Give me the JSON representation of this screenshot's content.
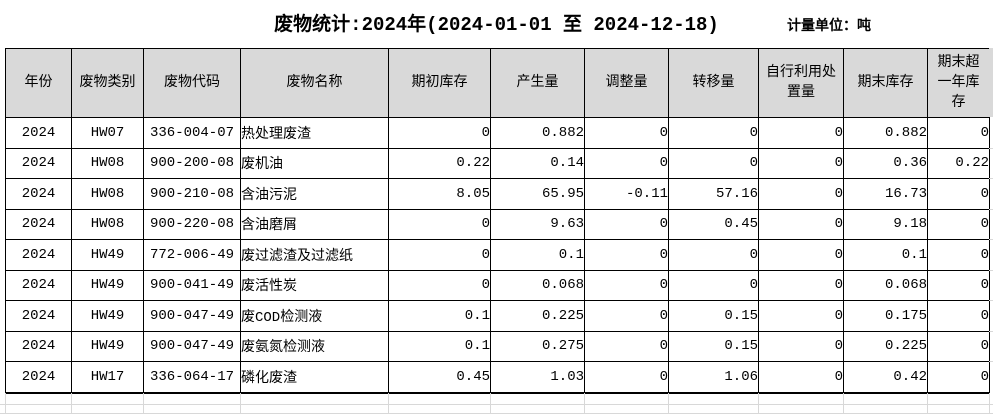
{
  "page": {
    "title": "废物统计:2024年(2024-01-01 至 2024-12-18)",
    "unit_label": "计量单位：吨"
  },
  "table": {
    "columns": [
      "年份",
      "废物类别",
      "废物代码",
      "废物名称",
      "期初库存",
      "产生量",
      "调整量",
      "转移量",
      "自行利用处置量",
      "期末库存",
      "期末超一年库存"
    ],
    "rows": [
      {
        "cells": [
          "2024",
          "HW07",
          "336-004-07",
          "热处理废渣",
          "0",
          "0.882",
          "0",
          "0",
          "0",
          "0.882",
          "0"
        ]
      },
      {
        "cells": [
          "2024",
          "HW08",
          "900-200-08",
          "废机油",
          "0.22",
          "0.14",
          "0",
          "0",
          "0",
          "0.36",
          "0.22"
        ]
      },
      {
        "cells": [
          "2024",
          "HW08",
          "900-210-08",
          "含油污泥",
          "8.05",
          "65.95",
          "-0.11",
          "57.16",
          "0",
          "16.73",
          "0"
        ]
      },
      {
        "cells": [
          "2024",
          "HW08",
          "900-220-08",
          "含油磨屑",
          "0",
          "9.63",
          "0",
          "0.45",
          "0",
          "9.18",
          "0"
        ]
      },
      {
        "cells": [
          "2024",
          "HW49",
          "772-006-49",
          "废过滤渣及过滤纸",
          "0",
          "0.1",
          "0",
          "0",
          "0",
          "0.1",
          "0"
        ]
      },
      {
        "cells": [
          "2024",
          "HW49",
          "900-041-49",
          "废活性炭",
          "0",
          "0.068",
          "0",
          "0",
          "0",
          "0.068",
          "0"
        ]
      },
      {
        "cells": [
          "2024",
          "HW49",
          "900-047-49",
          "废COD检测液",
          "0.1",
          "0.225",
          "0",
          "0.15",
          "0",
          "0.175",
          "0"
        ]
      },
      {
        "cells": [
          "2024",
          "HW49",
          "900-047-49",
          "废氨氮检测液",
          "0.1",
          "0.275",
          "0",
          "0.15",
          "0",
          "0.225",
          "0"
        ]
      },
      {
        "cells": [
          "2024",
          "HW17",
          "336-064-17",
          "磷化废渣",
          "0.45",
          "1.03",
          "0",
          "1.06",
          "0",
          "0.42",
          "0"
        ]
      }
    ]
  },
  "colors": {
    "header_bg": "#d9d9d9",
    "border": "#000000",
    "faint_grid": "#d8d8d8"
  }
}
